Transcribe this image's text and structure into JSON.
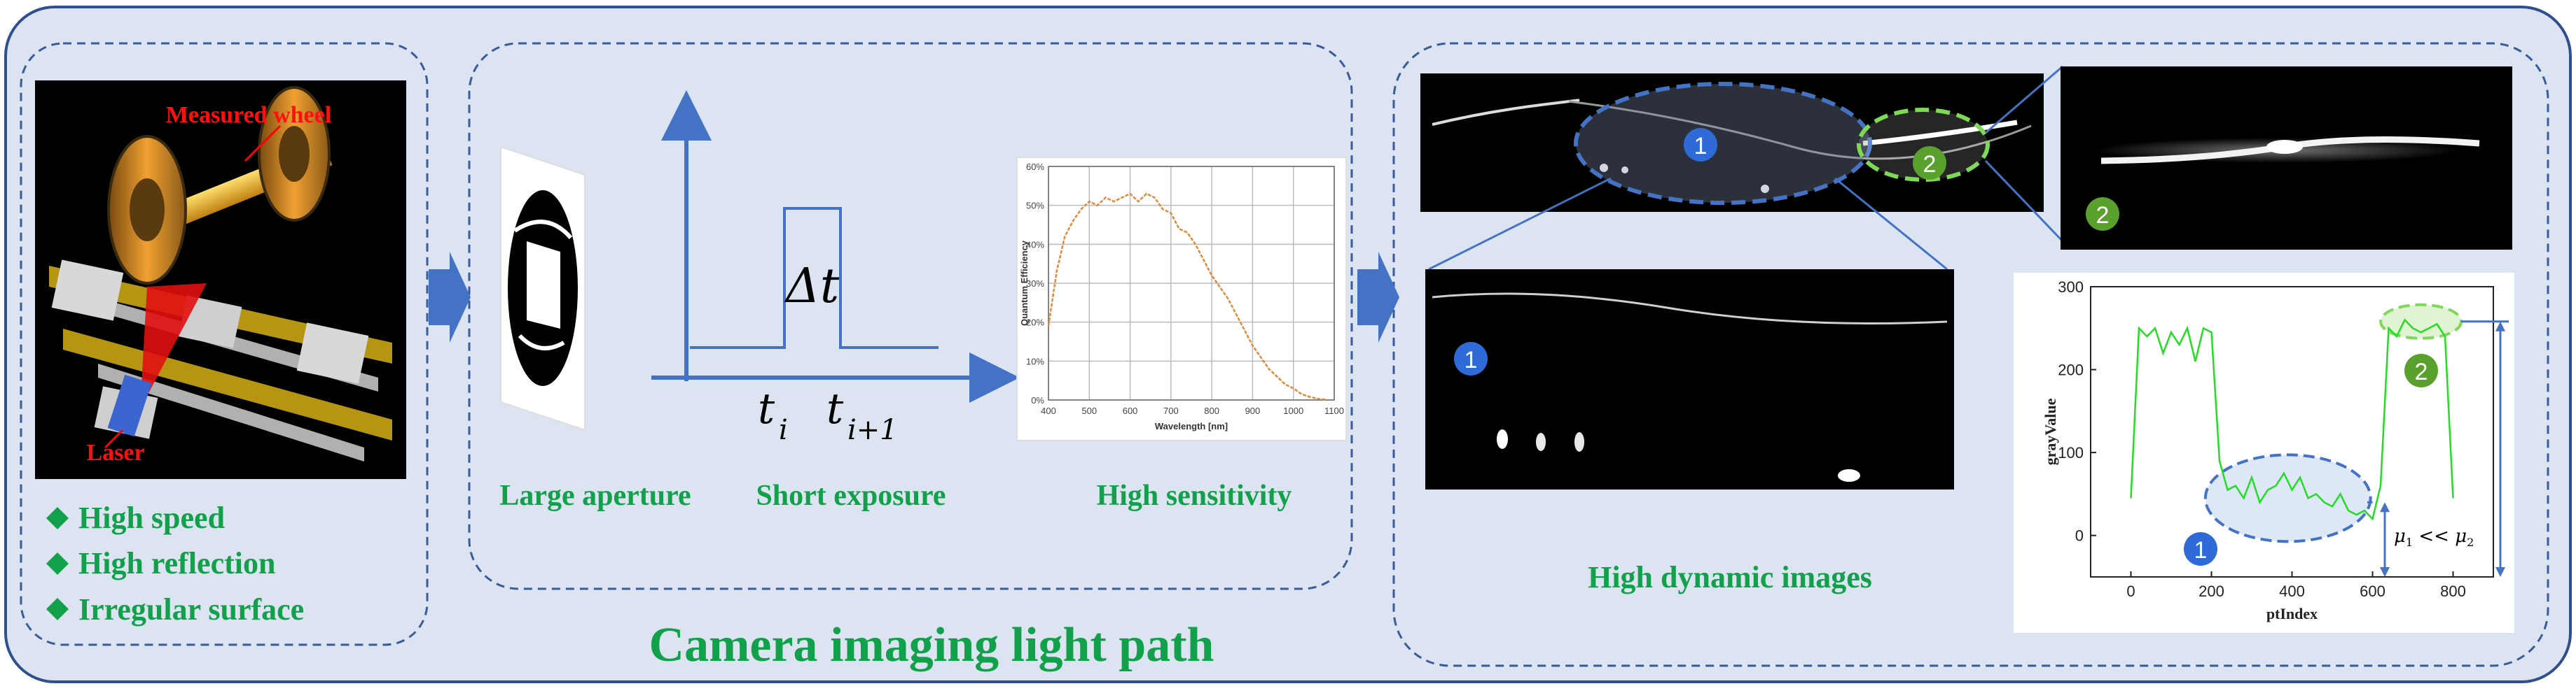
{
  "title": "Camera imaging light path",
  "colors": {
    "panel_bg": "#dce4f2",
    "panel_border": "#2f4f8f",
    "accent_blue": "#4472c4",
    "label_green": "#12a04a",
    "plot_green": "#22dd22",
    "qe_orange": "#e08a3c",
    "badge_blue": "#2f6bd8",
    "badge_green": "#5aa02c"
  },
  "left_panel": {
    "photo_labels": {
      "wheel": "Measured wheel",
      "laser": "Laser"
    },
    "features": [
      "High speed",
      "High reflection",
      "Irregular surface"
    ],
    "bullet_icon": "diamond-icon"
  },
  "middle_panel": {
    "aperture_label": "Large aperture",
    "exposure_label": "Short exposure",
    "sensitivity_label": "High sensitivity",
    "pulse": {
      "delta": "Δt",
      "t_i": "t",
      "t_i_sub": "i",
      "t_next": "t",
      "t_next_sub": "i+1"
    },
    "qe_chart": {
      "type": "line",
      "ylabel": "Quantum Efficiency",
      "xlabel": "Wavelength [nm]",
      "x_ticks": [
        "400",
        "500",
        "600",
        "700",
        "800",
        "900",
        "1000",
        "1100"
      ],
      "y_ticks": [
        "0%",
        "10%",
        "20%",
        "30%",
        "40%",
        "50%",
        "60%"
      ],
      "xlim": [
        400,
        1100
      ],
      "ylim": [
        0,
        60
      ]
    }
  },
  "right_panel": {
    "caption": "High dynamic images",
    "badge_1": "1",
    "badge_2": "2",
    "plot": {
      "xlabel": "ptIndex",
      "ylabel": "grayValue",
      "x_ticks": [
        "0",
        "200",
        "400",
        "600",
        "800"
      ],
      "y_ticks": [
        "0",
        "100",
        "200",
        "300"
      ],
      "mu1": "μ",
      "mu1_sub": "1",
      "relation": " << ",
      "mu2": "μ",
      "mu2_sub": "2"
    }
  },
  "chart_data": [
    {
      "type": "line",
      "title": "",
      "xlabel": "Wavelength [nm]",
      "ylabel": "Quantum Efficiency",
      "xlim": [
        400,
        1100
      ],
      "ylim": [
        0,
        60
      ],
      "grid": true,
      "x": [
        400,
        420,
        440,
        460,
        480,
        500,
        520,
        540,
        560,
        580,
        600,
        620,
        640,
        660,
        680,
        700,
        720,
        740,
        760,
        780,
        800,
        820,
        840,
        860,
        880,
        900,
        920,
        940,
        960,
        980,
        1000,
        1020,
        1040,
        1060,
        1080
      ],
      "values": [
        19,
        33,
        42,
        46,
        49,
        51,
        50,
        52,
        51,
        52,
        53,
        51,
        53,
        52,
        49,
        48,
        44,
        43,
        40,
        36,
        32,
        29,
        26,
        22,
        18,
        14,
        11,
        8,
        6,
        4,
        3,
        1.5,
        0.8,
        0.3,
        0.1
      ]
    },
    {
      "type": "line",
      "title": "",
      "xlabel": "ptIndex",
      "ylabel": "grayValue",
      "xlim": [
        -100,
        900
      ],
      "ylim": [
        -50,
        300
      ],
      "grid": false,
      "x": [
        0,
        20,
        40,
        60,
        80,
        100,
        120,
        140,
        160,
        180,
        200,
        220,
        240,
        260,
        280,
        300,
        320,
        340,
        360,
        380,
        400,
        420,
        440,
        460,
        480,
        500,
        520,
        540,
        560,
        580,
        600,
        620,
        640,
        660,
        680,
        700,
        720,
        740,
        760,
        780,
        800
      ],
      "values": [
        45,
        250,
        240,
        250,
        220,
        245,
        230,
        250,
        210,
        250,
        245,
        90,
        55,
        60,
        45,
        70,
        40,
        55,
        60,
        75,
        55,
        70,
        45,
        50,
        40,
        35,
        50,
        30,
        25,
        30,
        20,
        60,
        250,
        240,
        260,
        250,
        245,
        250,
        255,
        240,
        45
      ]
    }
  ]
}
